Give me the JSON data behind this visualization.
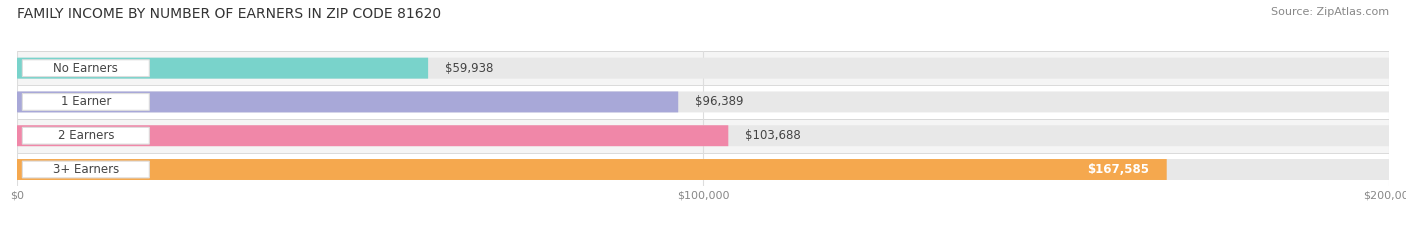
{
  "title": "FAMILY INCOME BY NUMBER OF EARNERS IN ZIP CODE 81620",
  "source": "Source: ZipAtlas.com",
  "categories": [
    "No Earners",
    "1 Earner",
    "2 Earners",
    "3+ Earners"
  ],
  "values": [
    59938,
    96389,
    103688,
    167585
  ],
  "value_labels": [
    "$59,938",
    "$96,389",
    "$103,688",
    "$167,585"
  ],
  "bar_colors": [
    "#79d3cb",
    "#a8a8d8",
    "#f087a8",
    "#f5a84e"
  ],
  "xlim": [
    0,
    200000
  ],
  "xticks": [
    0,
    100000,
    200000
  ],
  "xticklabels": [
    "$0",
    "$100,000",
    "$200,000"
  ],
  "bg_color": "#ffffff",
  "row_bg_even": "#f5f5f5",
  "row_bg_odd": "#ffffff",
  "bar_bg_color": "#e8e8e8",
  "title_fontsize": 10,
  "source_fontsize": 8,
  "label_fontsize": 8.5,
  "value_fontsize": 8.5
}
